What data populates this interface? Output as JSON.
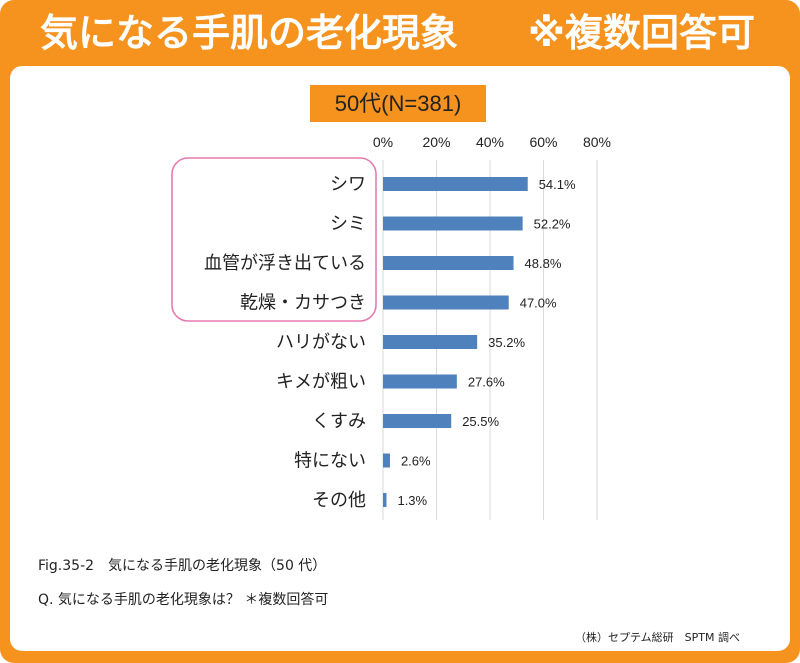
{
  "header": {
    "title": "気になる手肌の老化現象",
    "note": "※複数回答可"
  },
  "badge_label": "50代(N=381)",
  "highlight_color": "#e879b0",
  "accent_color": "#f6921e",
  "bar_color": "#4f81bd",
  "chart_data": {
    "type": "bar",
    "orientation": "horizontal",
    "categories": [
      "シワ",
      "シミ",
      "血管が浮き出ている",
      "乾燥・カサつき",
      "ハリがない",
      "キメが粗い",
      "くすみ",
      "特にない",
      "その他"
    ],
    "values": [
      54.1,
      52.2,
      48.8,
      47.0,
      35.2,
      27.6,
      25.5,
      2.6,
      1.3
    ],
    "data_labels": [
      "54.1%",
      "52.2%",
      "48.8%",
      "47.0%",
      "35.2%",
      "27.6%",
      "25.5%",
      "2.6%",
      "1.3%"
    ],
    "ticks": [
      "0%",
      "20%",
      "40%",
      "60%",
      "80%"
    ],
    "xlim": [
      0,
      80
    ],
    "grid": true,
    "axis_position": "top",
    "highlighted_categories": [
      "シワ",
      "シミ",
      "血管が浮き出ている",
      "乾燥・カサつき"
    ]
  },
  "caption": {
    "figure": "Fig.35-2　気になる手肌の老化現象（50 代）",
    "question": "Q. 気になる手肌の老化現象は？ ＊複数回答可"
  },
  "source": "（株）セプテム総研　SPTM 調べ"
}
